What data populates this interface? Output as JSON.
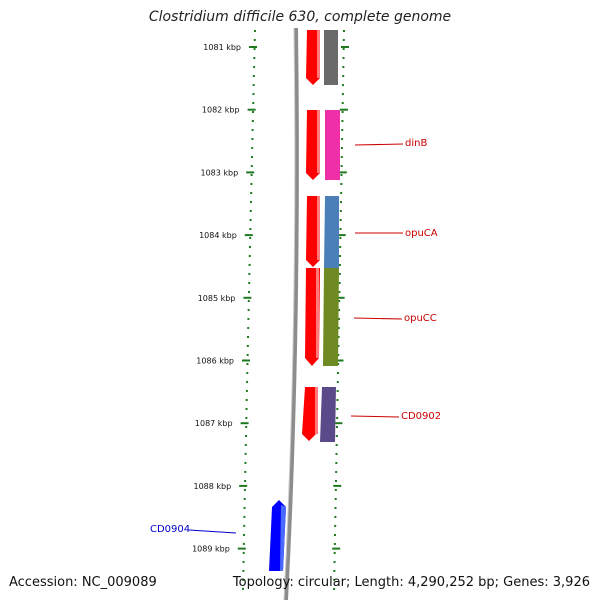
{
  "title": "Clostridium difficile 630, complete genome",
  "accession": "Accession: NC_009089",
  "topology": "Topology: circular; Length: 4,290,252 bp; Genes: 3,926",
  "colors": {
    "background": "#ffffff",
    "backbone": "#8a8a8a",
    "tick": "#1f7a1f",
    "tick_label": "#111111",
    "gene_red": "#ff0000",
    "label_red": "#cc0000",
    "label_blue": "#0000cc",
    "gene_blue": "#0000ff"
  },
  "scale": {
    "unit": "kbp",
    "ticks": [
      "1081 kbp",
      "1082 kbp",
      "1083 kbp",
      "1084 kbp",
      "1085 kbp",
      "1086 kbp",
      "1087 kbp",
      "1088 kbp",
      "1089 kbp"
    ]
  },
  "genes": [
    {
      "label": "",
      "strand": "forward",
      "label_color": "red",
      "feature_color": "#6a6a6a"
    },
    {
      "label": "dinB",
      "strand": "forward",
      "label_color": "red",
      "feature_color": "#ee2fa8"
    },
    {
      "label": "opuCA",
      "strand": "forward",
      "label_color": "red",
      "feature_color": "#4a7fb8"
    },
    {
      "label": "opuCC",
      "strand": "forward",
      "label_color": "red",
      "feature_color": "#6f8a22"
    },
    {
      "label": "CD0902",
      "strand": "forward",
      "label_color": "red",
      "feature_color": "#5a4a8a"
    },
    {
      "label": "CD0904",
      "strand": "reverse",
      "label_color": "blue",
      "feature_color": "#0000ff"
    }
  ]
}
